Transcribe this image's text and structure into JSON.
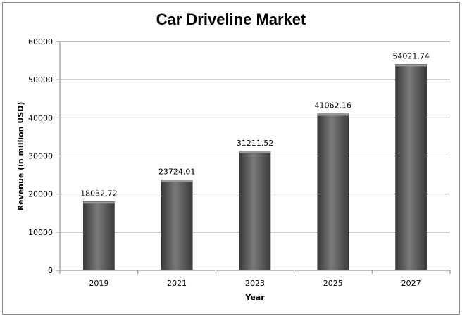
{
  "chart_data": {
    "type": "bar",
    "title": "Car Driveline Market",
    "xlabel": "Year",
    "ylabel": "Revenue (in million USD)",
    "categories": [
      "2019",
      "2021",
      "2023",
      "2025",
      "2027"
    ],
    "values": [
      18032.72,
      23724.01,
      31211.52,
      41062.16,
      54021.74
    ],
    "data_labels": [
      "18032.72",
      "23724.01",
      "31211.52",
      "41062.16",
      "54021.74"
    ],
    "ylim": [
      0,
      60000
    ],
    "yticks": [
      0,
      10000,
      20000,
      30000,
      40000,
      50000,
      60000
    ],
    "grid": true,
    "legend": "none",
    "colors": {
      "bar_dark": "#3a3a3a",
      "bar_light": "#7a7a7a",
      "grid": "#808080",
      "axis": "#808080"
    }
  }
}
